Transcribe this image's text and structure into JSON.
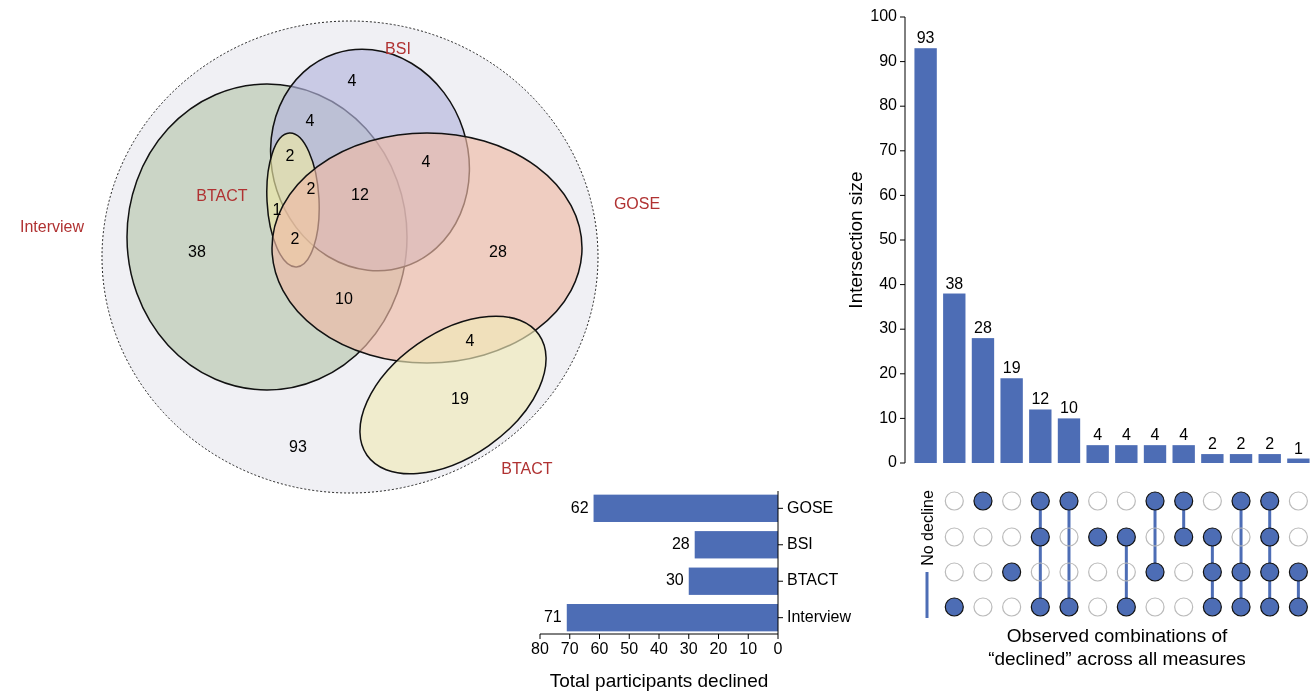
{
  "chart_data": [
    {
      "type": "other",
      "categories": [
        "Interview",
        "BSI",
        "BTACT",
        "GOSE",
        "BTACT"
      ],
      "colors": [
        "#b7c6ad",
        "#b3b6dd",
        "#ede8a6",
        "#eebaa6",
        "#f0eab8"
      ],
      "annotations": [
        "4",
        "4",
        "2",
        "1",
        "2",
        "12",
        "4",
        "2",
        "38",
        "28",
        "10",
        "4",
        "19",
        "93"
      ]
    },
    {
      "type": "bar",
      "categories": [
        null,
        null,
        null,
        null,
        null,
        null,
        null,
        null,
        null,
        null,
        null,
        null,
        null,
        null
      ],
      "values": [
        93,
        38,
        28,
        19,
        12,
        10,
        4,
        4,
        4,
        4,
        2,
        2,
        2,
        1
      ],
      "color": "#4d6db5",
      "ylim": [
        0,
        100
      ],
      "yticks": [
        0,
        10,
        20,
        30,
        40,
        50,
        60,
        70,
        80,
        90,
        100
      ],
      "ylabel": "Intersection size",
      "xlabel": "Observed combinations of\n“declined” across all measures",
      "data_labels": true,
      "grid": false,
      "annotations": [
        "No decline"
      ]
    },
    {
      "type": "bar",
      "orientation": "horizontal",
      "categories": [
        "GOSE",
        "BSI",
        "BTACT",
        "Interview"
      ],
      "values": [
        62,
        28,
        30,
        71
      ],
      "color": "#4d6db5",
      "xlim": [
        80,
        0
      ],
      "xticks": [
        80,
        70,
        60,
        50,
        40,
        30,
        20,
        10,
        0
      ],
      "xlabel": "Total participants declined",
      "data_labels": true,
      "grid": false
    }
  ]
}
